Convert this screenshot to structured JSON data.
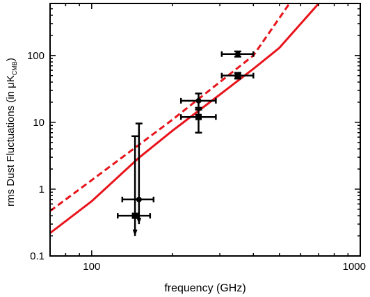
{
  "chart_data": {
    "type": "scatter",
    "xlabel": "frequency (GHz)",
    "ylabel": {
      "prefix": "rms Dust Fluctuations (in ",
      "mu": "μ",
      "k": "K",
      "sub": "CMB",
      "suffix": ")"
    },
    "x_scale": "log",
    "y_scale": "log",
    "xlim": [
      70,
      1000
    ],
    "ylim": [
      0.1,
      600
    ],
    "xticks": [
      {
        "value": 100,
        "label": "100"
      },
      {
        "value": 1000,
        "label": "1000"
      }
    ],
    "yticks": [
      {
        "value": 0.1,
        "label": "0.1"
      },
      {
        "value": 1,
        "label": "1"
      },
      {
        "value": 10,
        "label": "10"
      },
      {
        "value": 100,
        "label": "100"
      }
    ],
    "grid": false,
    "colors": {
      "model": "#e8141c",
      "data": "#000000"
    },
    "series": [
      {
        "style": "dashed",
        "x": [
          70,
          100,
          150,
          200,
          300,
          400,
          545
        ],
        "y": [
          0.47,
          1.36,
          4.6,
          11,
          40,
          100,
          600
        ]
      },
      {
        "style": "solid",
        "x": [
          70,
          100,
          150,
          200,
          300,
          400,
          500,
          700
        ],
        "y": [
          0.22,
          0.66,
          2.95,
          7.5,
          26,
          63,
          130,
          600
        ]
      }
    ],
    "points": [
      {
        "marker": "circle",
        "x": 150,
        "y": 0.7,
        "xerr": [
          130,
          170
        ],
        "yerr": [
          0.3,
          9.6
        ],
        "upper_limit": true
      },
      {
        "marker": "square",
        "x": 145,
        "y": 0.4,
        "xerr": [
          125,
          165
        ],
        "yerr": [
          0.2,
          6.2
        ],
        "upper_limit": true
      },
      {
        "marker": "circle",
        "x": 250,
        "y": 21,
        "xerr": [
          215,
          290
        ],
        "yerr": [
          15.5,
          27
        ]
      },
      {
        "marker": "square",
        "x": 250,
        "y": 12,
        "xerr": [
          215,
          290
        ],
        "yerr": [
          7.0,
          16.5
        ]
      },
      {
        "marker": "circle",
        "x": 350,
        "y": 105,
        "xerr": [
          305,
          400
        ],
        "yerr": [
          96,
          115
        ]
      },
      {
        "marker": "square",
        "x": 350,
        "y": 50,
        "xerr": [
          305,
          400
        ],
        "yerr": [
          45,
          55
        ]
      }
    ]
  }
}
